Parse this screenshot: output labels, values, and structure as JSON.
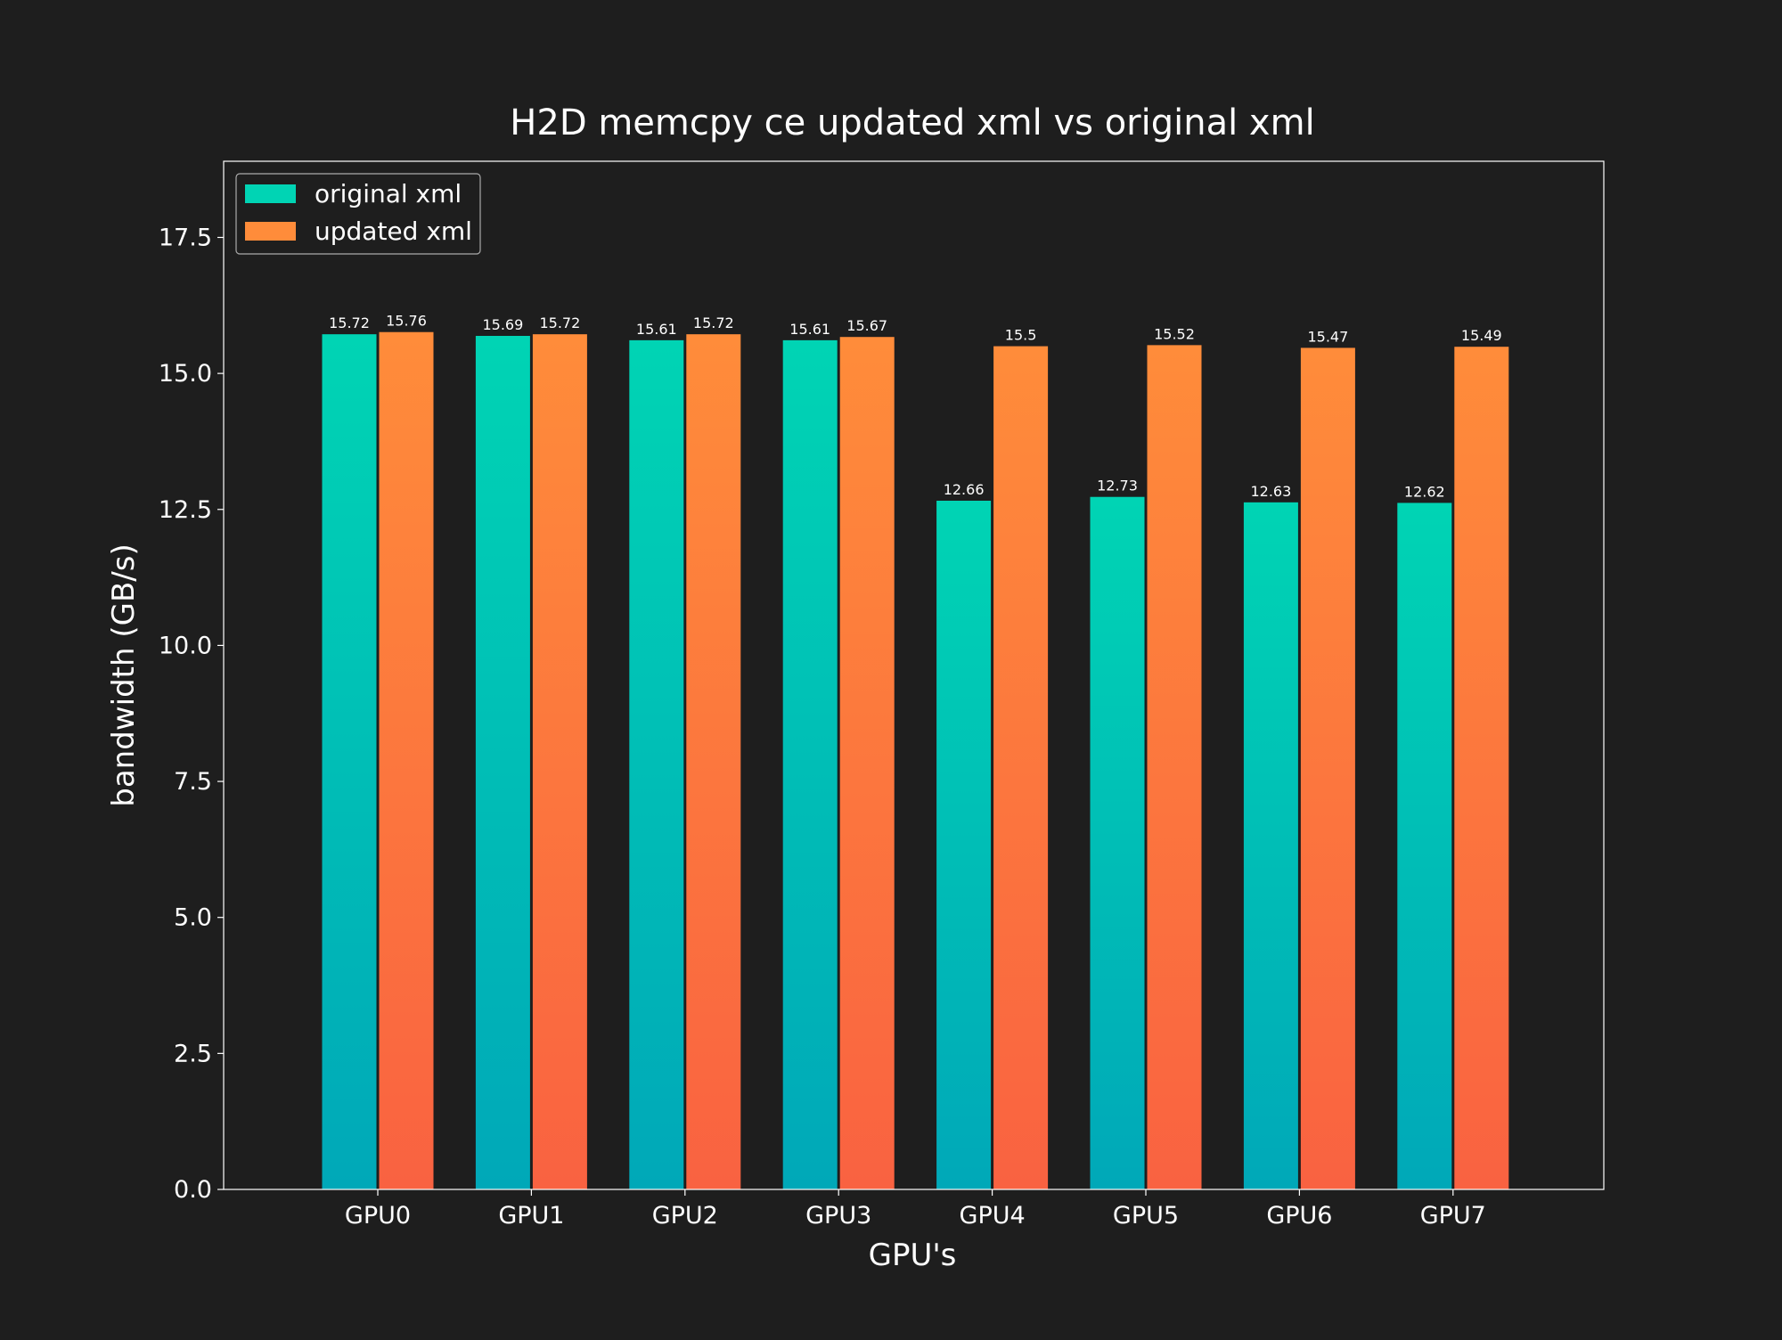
{
  "chart_data": {
    "type": "bar",
    "title": "H2D memcpy ce updated xml vs original xml",
    "xlabel": "GPU's",
    "ylabel": "bandwidth (GB/s)",
    "categories": [
      "GPU0",
      "GPU1",
      "GPU2",
      "GPU3",
      "GPU4",
      "GPU5",
      "GPU6",
      "GPU7"
    ],
    "series": [
      {
        "name": "original xml",
        "values": [
          15.72,
          15.69,
          15.61,
          15.61,
          12.66,
          12.73,
          12.63,
          12.62
        ],
        "color_top": "#00d4b4",
        "color_bottom": "#00a8b8"
      },
      {
        "name": "updated xml",
        "values": [
          15.76,
          15.72,
          15.72,
          15.67,
          15.5,
          15.52,
          15.47,
          15.49
        ],
        "color_top": "#ff8c3a",
        "color_bottom": "#f96241"
      }
    ],
    "data_labels": [
      [
        "15.72",
        "15.69",
        "15.61",
        "15.61",
        "12.66",
        "12.73",
        "12.63",
        "12.62"
      ],
      [
        "15.76",
        "15.72",
        "15.72",
        "15.67",
        "15.5",
        "15.52",
        "15.47",
        "15.49"
      ]
    ],
    "yticks": [
      0,
      2.5,
      5,
      7.5,
      10,
      12.5,
      15,
      17.5
    ],
    "ytick_labels": [
      "0.0",
      "2.5",
      "5.0",
      "7.5",
      "10.0",
      "12.5",
      "15.0",
      "17.5"
    ],
    "ylim": [
      0,
      18.9
    ],
    "grid": false,
    "legend_position": "top-left",
    "background": "#1e1e1e",
    "text_color": "#ffffff"
  }
}
